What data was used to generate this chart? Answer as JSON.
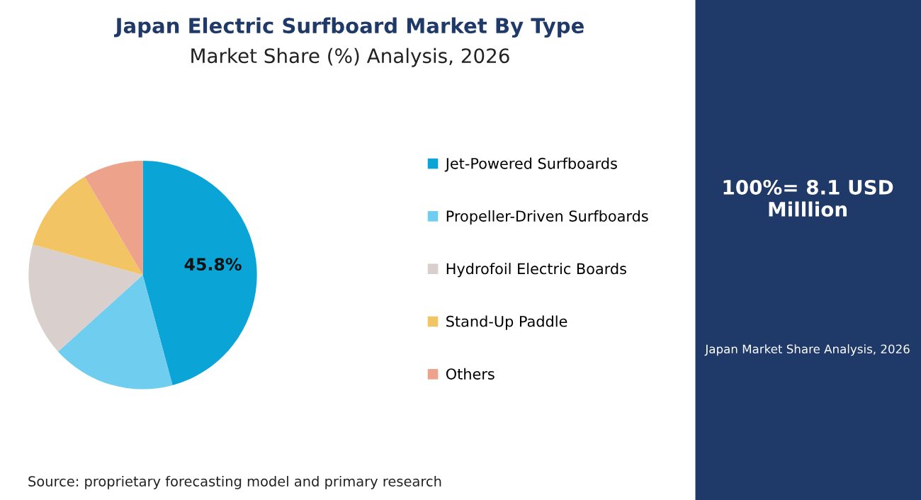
{
  "chart_data": {
    "type": "pie",
    "title": "Japan Electric Surfboard Market By Type",
    "subtitle": "Market Share (%) Analysis, 2026",
    "categories": [
      "Jet-Powered Surfboards",
      "Propeller-Driven Surfboards",
      "Hydrofoil Electric Boards",
      "Stand-Up Paddle",
      "Others"
    ],
    "values": [
      45.8,
      17.5,
      16.0,
      12.2,
      8.5
    ],
    "colors": [
      "#0aa5d6",
      "#6fcdf0",
      "#d9cfcc",
      "#f2c464",
      "#eda38b"
    ],
    "value_labels": [
      "45.8%",
      null,
      null,
      null,
      null
    ],
    "legend": "right",
    "annotations": [
      "100%= 8.1 USD Milllion",
      "Japan Market Share Analysis, 2026",
      "Source: proprietary forecasting model and primary research"
    ]
  }
}
